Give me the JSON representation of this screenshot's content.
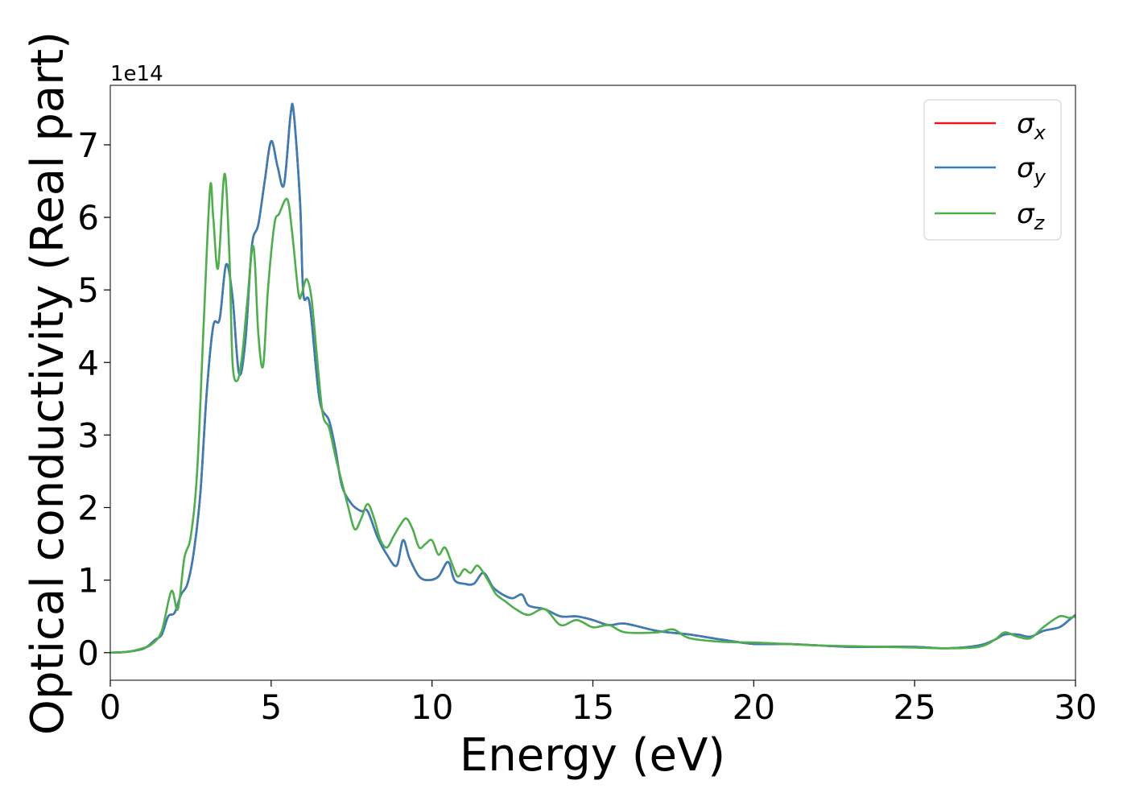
{
  "chart_data": {
    "type": "line",
    "title": "",
    "xlabel": "Energy (eV)",
    "ylabel": "Optical conductivity (Real part)",
    "y_multiplier_label": "1e14",
    "xlim": [
      0,
      30
    ],
    "ylim": [
      -0.38,
      7.82
    ],
    "xticks": [
      0,
      5,
      10,
      15,
      20,
      25,
      30
    ],
    "yticks": [
      0,
      1,
      2,
      3,
      4,
      5,
      6,
      7
    ],
    "grid": false,
    "legend_position": "top-right",
    "series": [
      {
        "name": "σ",
        "subscript": "x",
        "color": "#e41a1c",
        "x": [
          0,
          0.5,
          1.0,
          1.2,
          1.4,
          1.6,
          1.8,
          2.0,
          2.2,
          2.4,
          2.6,
          2.8,
          3.0,
          3.2,
          3.4,
          3.6,
          3.8,
          4.0,
          4.2,
          4.4,
          4.6,
          4.8,
          5.0,
          5.2,
          5.4,
          5.6,
          5.7,
          5.9,
          6.0,
          6.2,
          6.5,
          6.8,
          7.0,
          7.2,
          7.5,
          7.8,
          8.0,
          8.3,
          8.6,
          8.9,
          9.1,
          9.3,
          9.6,
          9.9,
          10.2,
          10.5,
          10.7,
          11.0,
          11.3,
          11.6,
          11.9,
          12.2,
          12.5,
          12.8,
          13.0,
          13.5,
          14.0,
          14.5,
          15.0,
          15.5,
          16.0,
          17.0,
          18.0,
          19.0,
          20.0,
          21.0,
          22.0,
          23.0,
          24.0,
          25.0,
          26.0,
          27.0,
          27.5,
          27.8,
          28.2,
          28.6,
          29.0,
          29.5,
          29.8,
          30.0
        ],
        "y": [
          0,
          0.01,
          0.05,
          0.1,
          0.18,
          0.25,
          0.5,
          0.55,
          0.8,
          0.95,
          1.4,
          2.2,
          3.6,
          4.5,
          4.6,
          5.35,
          4.9,
          3.85,
          4.3,
          5.6,
          5.9,
          6.5,
          7.05,
          6.7,
          6.45,
          7.4,
          7.45,
          6.2,
          4.95,
          4.8,
          3.5,
          3.2,
          2.8,
          2.3,
          2.05,
          1.95,
          1.95,
          1.6,
          1.35,
          1.2,
          1.55,
          1.3,
          1.05,
          1.0,
          1.05,
          1.25,
          1.0,
          0.95,
          0.95,
          1.1,
          0.9,
          0.8,
          0.75,
          0.8,
          0.65,
          0.6,
          0.5,
          0.5,
          0.45,
          0.38,
          0.4,
          0.3,
          0.25,
          0.18,
          0.12,
          0.12,
          0.1,
          0.08,
          0.08,
          0.08,
          0.06,
          0.1,
          0.18,
          0.25,
          0.25,
          0.22,
          0.3,
          0.35,
          0.45,
          0.52
        ]
      },
      {
        "name": "σ",
        "subscript": "y",
        "color": "#377eb8",
        "x": [
          0,
          0.5,
          1.0,
          1.2,
          1.4,
          1.6,
          1.8,
          2.0,
          2.2,
          2.4,
          2.6,
          2.8,
          3.0,
          3.2,
          3.4,
          3.6,
          3.8,
          4.0,
          4.2,
          4.4,
          4.6,
          4.8,
          5.0,
          5.2,
          5.4,
          5.6,
          5.7,
          5.9,
          6.0,
          6.2,
          6.5,
          6.8,
          7.0,
          7.2,
          7.5,
          7.8,
          8.0,
          8.3,
          8.6,
          8.9,
          9.1,
          9.3,
          9.6,
          9.9,
          10.2,
          10.5,
          10.7,
          11.0,
          11.3,
          11.6,
          11.9,
          12.2,
          12.5,
          12.8,
          13.0,
          13.5,
          14.0,
          14.5,
          15.0,
          15.5,
          16.0,
          17.0,
          18.0,
          19.0,
          20.0,
          21.0,
          22.0,
          23.0,
          24.0,
          25.0,
          26.0,
          27.0,
          27.5,
          27.8,
          28.2,
          28.6,
          29.0,
          29.5,
          29.8,
          30.0
        ],
        "y": [
          0,
          0.01,
          0.05,
          0.1,
          0.18,
          0.25,
          0.5,
          0.55,
          0.8,
          0.95,
          1.4,
          2.2,
          3.6,
          4.5,
          4.6,
          5.35,
          4.9,
          3.85,
          4.3,
          5.6,
          5.9,
          6.5,
          7.05,
          6.7,
          6.45,
          7.4,
          7.45,
          6.2,
          4.95,
          4.8,
          3.5,
          3.2,
          2.8,
          2.3,
          2.05,
          1.95,
          1.95,
          1.6,
          1.35,
          1.2,
          1.55,
          1.3,
          1.05,
          1.0,
          1.05,
          1.25,
          1.0,
          0.95,
          0.95,
          1.1,
          0.9,
          0.8,
          0.75,
          0.8,
          0.65,
          0.6,
          0.5,
          0.5,
          0.45,
          0.38,
          0.4,
          0.3,
          0.25,
          0.18,
          0.12,
          0.12,
          0.1,
          0.08,
          0.08,
          0.08,
          0.06,
          0.1,
          0.18,
          0.25,
          0.25,
          0.22,
          0.3,
          0.35,
          0.45,
          0.52
        ]
      },
      {
        "name": "σ",
        "subscript": "z",
        "color": "#4daf4a",
        "x": [
          0,
          0.5,
          1.0,
          1.3,
          1.6,
          1.9,
          2.1,
          2.3,
          2.5,
          2.7,
          2.9,
          3.1,
          3.2,
          3.35,
          3.55,
          3.7,
          3.8,
          3.95,
          4.1,
          4.25,
          4.45,
          4.6,
          4.75,
          4.9,
          5.1,
          5.25,
          5.5,
          5.65,
          5.85,
          5.95,
          6.1,
          6.25,
          6.4,
          6.6,
          6.8,
          7.0,
          7.2,
          7.4,
          7.6,
          7.8,
          8.0,
          8.2,
          8.4,
          8.6,
          8.8,
          9.0,
          9.2,
          9.4,
          9.6,
          9.8,
          10.0,
          10.2,
          10.4,
          10.6,
          10.8,
          11.0,
          11.2,
          11.4,
          11.6,
          11.8,
          12.0,
          12.3,
          12.6,
          13.0,
          13.5,
          14.0,
          14.5,
          15.0,
          15.5,
          16.0,
          17.0,
          17.5,
          18.0,
          19.0,
          20.0,
          21.0,
          22.0,
          23.0,
          24.0,
          25.0,
          26.0,
          27.0,
          27.5,
          27.8,
          28.2,
          28.6,
          29.0,
          29.5,
          29.8,
          30.0
        ],
        "y": [
          0,
          0.01,
          0.06,
          0.12,
          0.3,
          0.85,
          0.6,
          1.3,
          1.6,
          2.5,
          4.5,
          6.4,
          6.0,
          5.3,
          6.6,
          5.5,
          4.0,
          3.75,
          4.1,
          4.8,
          5.6,
          4.4,
          3.95,
          5.0,
          5.9,
          6.05,
          6.25,
          5.8,
          4.95,
          4.95,
          5.15,
          4.9,
          4.2,
          3.3,
          3.1,
          2.7,
          2.35,
          2.0,
          1.7,
          1.85,
          2.05,
          1.85,
          1.55,
          1.45,
          1.6,
          1.75,
          1.85,
          1.7,
          1.45,
          1.5,
          1.55,
          1.35,
          1.45,
          1.25,
          1.05,
          1.15,
          1.1,
          1.2,
          1.1,
          0.95,
          0.8,
          0.7,
          0.6,
          0.52,
          0.6,
          0.38,
          0.45,
          0.35,
          0.38,
          0.28,
          0.28,
          0.32,
          0.2,
          0.15,
          0.14,
          0.12,
          0.1,
          0.09,
          0.08,
          0.07,
          0.06,
          0.08,
          0.18,
          0.28,
          0.22,
          0.2,
          0.35,
          0.5,
          0.48,
          0.5
        ]
      }
    ]
  }
}
